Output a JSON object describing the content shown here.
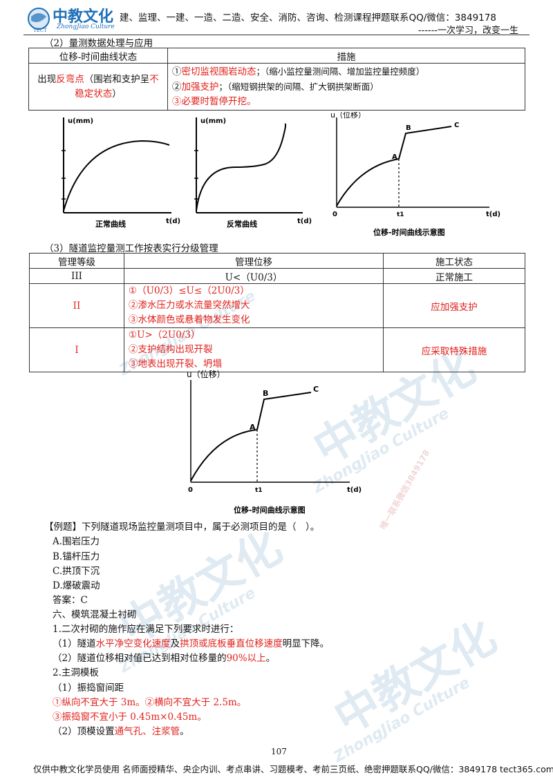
{
  "header": {
    "logo_text": "中教文化",
    "logo_sub": "ZhongJiao Culture",
    "logo_tect": "TECT",
    "title_line": "建、监理、一建、一造、二造、安全、消防、咨询、检测课程押题联系QQ/微信：3849178",
    "motto": "------一次学习，改变一生"
  },
  "section2": {
    "heading": "（2）量测数据处理与应用",
    "table": {
      "col1": "位移-时间曲线状态",
      "col2": "措施",
      "row_state_prefix": "出现",
      "row_state_red1": "反弯点",
      "row_state_mid": "（围岩和支护呈",
      "row_state_red2": "不稳定状态",
      "row_state_suffix": "）",
      "m1_num": "①",
      "m1_red": "密切监视围岩动态",
      "m1_rest": "；（缩小监控量测间隔、增加监控量控频度）",
      "m2_num": "②",
      "m2_red": "加强支护",
      "m2_rest": "；（缩短钢拱架的间隔、扩大钢拱架断面）",
      "m3": "③必要时暂停开挖。"
    }
  },
  "charts_top": {
    "c1_ylabel": "u(mm)",
    "c1_xlabel": "t(d)",
    "c1_caption": "正常曲线",
    "c2_ylabel": "u(mm)",
    "c2_xlabel": "t(d)",
    "c2_caption": "反常曲线",
    "c3_ylabel": "u（位移）",
    "c3_origin": "0",
    "c3_t1": "t1",
    "c3_xlabel": "t(d)",
    "c3_A": "A",
    "c3_B": "B",
    "c3_C": "C",
    "c3_caption": "位移-时间曲线示意图"
  },
  "section3": {
    "heading": "（3）隧道监控量测工作按表实行分级管理",
    "table": {
      "h1": "管理等级",
      "h2": "管理位移",
      "h3": "施工状态",
      "r1_level": "III",
      "r1_disp": "U<（U0/3）",
      "r1_status": "正常施工",
      "r2_level": "II",
      "r2_d1": "①（U0/3）≤U≤（2U0/3）",
      "r2_d2": "②渗水压力或水流量突然增大",
      "r2_d3": "③水体颜色或悬着物发生变化",
      "r2_status": "应加强支护",
      "r3_level": "I",
      "r3_d1": "①U>（2U0/3）",
      "r3_d2": "②支护结构出现开裂",
      "r3_d3": "③地表出现开裂、坍塌",
      "r3_status": "应采取特殊措施"
    }
  },
  "chart_mid": {
    "ylabel": "u（位移）",
    "origin": "0",
    "t1": "t1",
    "xlabel": "t(d)",
    "A": "A",
    "B": "B",
    "C": "C",
    "caption": "位移-时间曲线示意图"
  },
  "example": {
    "question": "【例题】下列隧道现场监控量测项目中，属于必测项目的是（　）。",
    "A": "A.围岩压力",
    "B": "B.锚杆压力",
    "C": "C.拱顶下沉",
    "D": "D.爆破震动",
    "answer": "答案：C"
  },
  "section6": {
    "heading": "六、模筑混凝土衬砌",
    "p1": "1.二次衬砌的施作应在满足下列要求时进行：",
    "p1a_pre": "（1）隧道",
    "p1a_red1": "水平净空变化速度",
    "p1a_mid": "及",
    "p1a_red2": "拱顶或底板垂直位移速度",
    "p1a_post": "明显下降。",
    "p1b_pre": "（2）隧道位移相对值已达到相对位移量的",
    "p1b_red": "90%以上",
    "p1b_post": "。",
    "p2": "2.主洞模板",
    "p2a": "（1）振捣窗间距",
    "p2b": "①纵向不宜大于 3m。②横向不宜大于 2.5m。",
    "p2c": "③振捣窗不宜小于 0.45m×0.45m。",
    "p2d_pre": "（2）顶模设置",
    "p2d_red": "通气孔、注浆管",
    "p2d_post": "。"
  },
  "footer": {
    "page": "107",
    "text": "仅供中教文化学员使用  名师面授精华、央企内训、考点串讲、习题模考、考前三页纸、绝密押题联系QQ/微信：3849178  tect365.com"
  },
  "watermark": {
    "brand": "中教文化",
    "sub": "ZhongJiao Culture",
    "contact": "唯一联系微信3849178"
  },
  "colors": {
    "accent_red": "#e0201a",
    "logo_blue": "#1e6fb8"
  }
}
